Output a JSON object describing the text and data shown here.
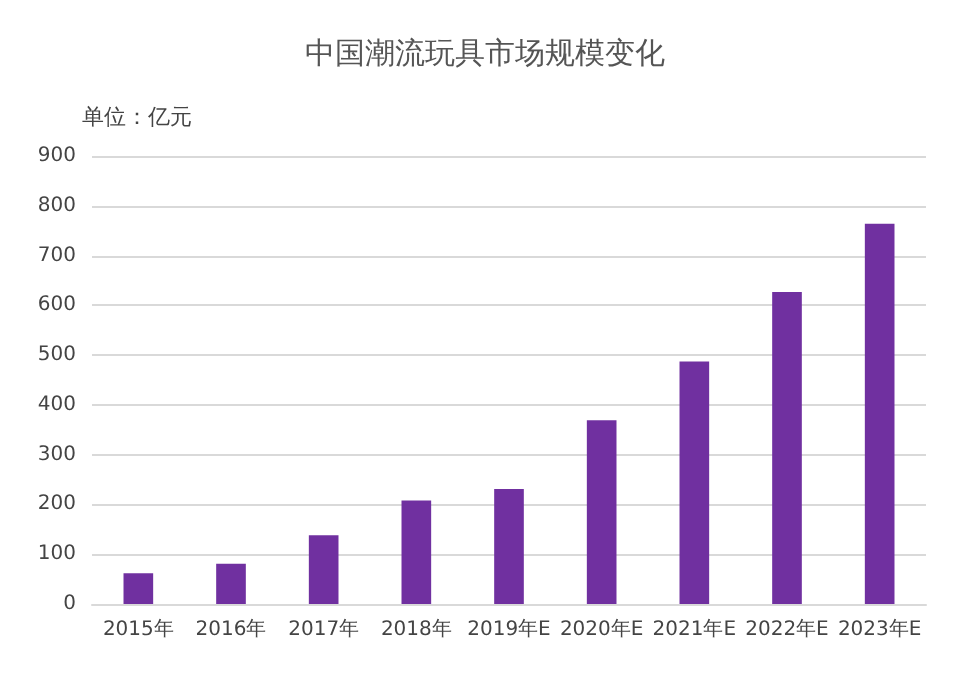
{
  "chart_data": {
    "type": "bar",
    "title": "中国潮流玩具市场规模变化",
    "subtitle": "单位：亿元",
    "categories": [
      "2015年",
      "2016年",
      "2017年",
      "2018年",
      "2019年E",
      "2020年E",
      "2021年E",
      "2022年E",
      "2023年E"
    ],
    "values": [
      62,
      81,
      138,
      208,
      231,
      369,
      487,
      627,
      764
    ],
    "color": "#7030a0",
    "ylim": [
      0,
      900
    ],
    "yticks": [
      0,
      100,
      200,
      300,
      400,
      500,
      600,
      700,
      800,
      900
    ],
    "grid": "y"
  }
}
